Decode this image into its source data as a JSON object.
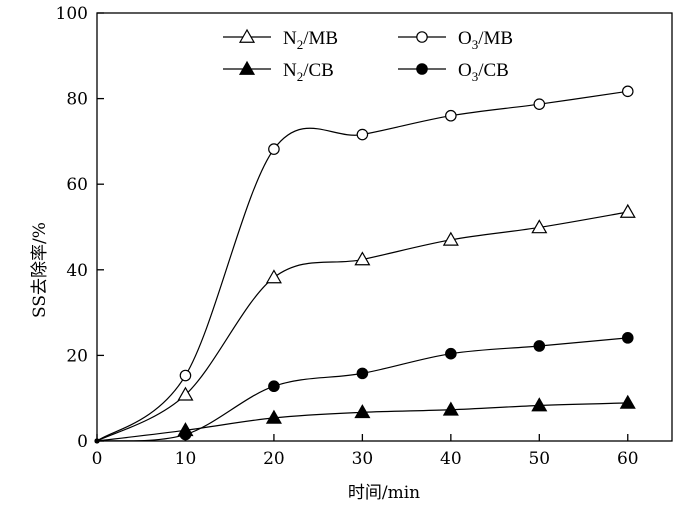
{
  "chart_data": {
    "type": "line",
    "xlabel": "时间/min",
    "ylabel": "SS去除率/%",
    "xlim": [
      0,
      65
    ],
    "ylim": [
      0,
      100
    ],
    "xticks": [
      0,
      10,
      20,
      30,
      40,
      50,
      60
    ],
    "yticks": [
      0,
      20,
      40,
      60,
      80,
      100
    ],
    "x": [
      0,
      10,
      20,
      30,
      40,
      50,
      60
    ],
    "legend_position": "top",
    "grid": false,
    "series": [
      {
        "name": "N2/MB",
        "label_main": "N",
        "label_sub": "2",
        "label_rest": "/MB",
        "marker": "triangle-open",
        "values": [
          0,
          10.8,
          38.2,
          42.4,
          47.0,
          49.9,
          53.5
        ]
      },
      {
        "name": "O3/MB",
        "label_main": "O",
        "label_sub": "3",
        "label_rest": "/MB",
        "marker": "circle-open",
        "values": [
          0,
          15.3,
          68.2,
          71.6,
          76.0,
          78.7,
          81.7
        ]
      },
      {
        "name": "N2/CB",
        "label_main": "N",
        "label_sub": "2",
        "label_rest": "/CB",
        "marker": "triangle-filled",
        "values": [
          0,
          2.5,
          5.4,
          6.7,
          7.3,
          8.3,
          8.9
        ]
      },
      {
        "name": "O3/CB",
        "label_main": "O",
        "label_sub": "3",
        "label_rest": "/CB",
        "marker": "circle-filled",
        "values": [
          0,
          1.5,
          12.8,
          15.8,
          20.4,
          22.2,
          24.1
        ]
      }
    ]
  }
}
